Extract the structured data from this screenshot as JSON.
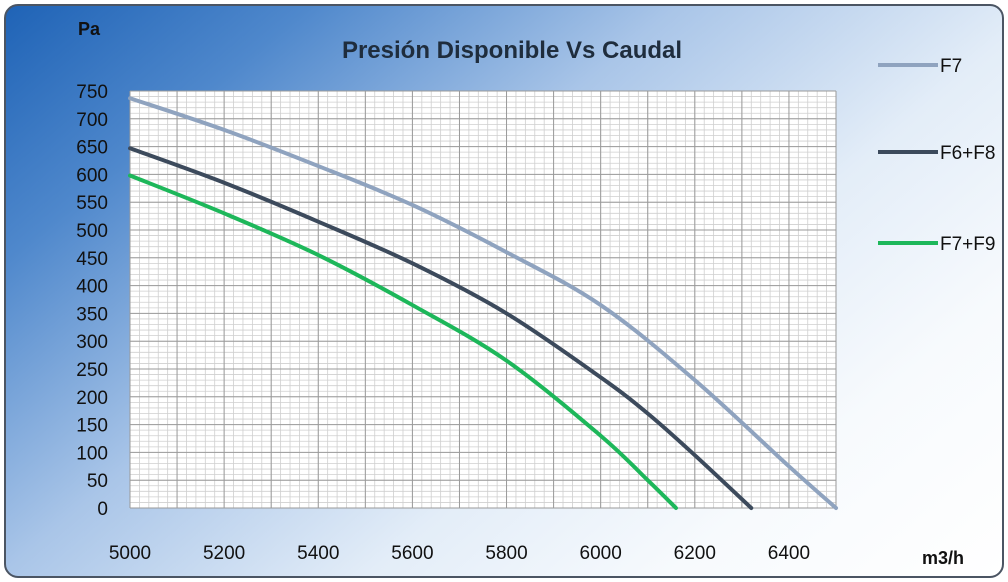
{
  "chart_data": {
    "type": "line",
    "title": "Presión Disponible Vs Caudal",
    "xlabel": "m3/h",
    "ylabel": "Pa",
    "xlim": [
      5000,
      6500
    ],
    "ylim": [
      0,
      750
    ],
    "x_ticks": [
      "5000",
      "5200",
      "5400",
      "5600",
      "5800",
      "6000",
      "6200",
      "6400"
    ],
    "y_ticks": [
      "0",
      "50",
      "100",
      "150",
      "200",
      "250",
      "300",
      "350",
      "400",
      "450",
      "500",
      "550",
      "600",
      "650",
      "700",
      "750"
    ],
    "grid": true,
    "legend_position": "right",
    "series": [
      {
        "name": "F7",
        "color": "#8fa3bf",
        "x": [
          5000,
          5200,
          5400,
          5600,
          5800,
          6000,
          6200,
          6400,
          6500
        ],
        "y": [
          737,
          680,
          615,
          545,
          460,
          365,
          230,
          75,
          0
        ]
      },
      {
        "name": "F6+F8",
        "color": "#3c4a5c",
        "x": [
          5000,
          5200,
          5400,
          5600,
          5800,
          6000,
          6100,
          6200,
          6320
        ],
        "y": [
          647,
          585,
          515,
          440,
          350,
          235,
          170,
          95,
          0
        ]
      },
      {
        "name": "F7+F9",
        "color": "#1db75a",
        "x": [
          5000,
          5200,
          5400,
          5600,
          5800,
          6000,
          6100,
          6160
        ],
        "y": [
          598,
          530,
          455,
          365,
          265,
          130,
          50,
          0
        ]
      }
    ]
  }
}
